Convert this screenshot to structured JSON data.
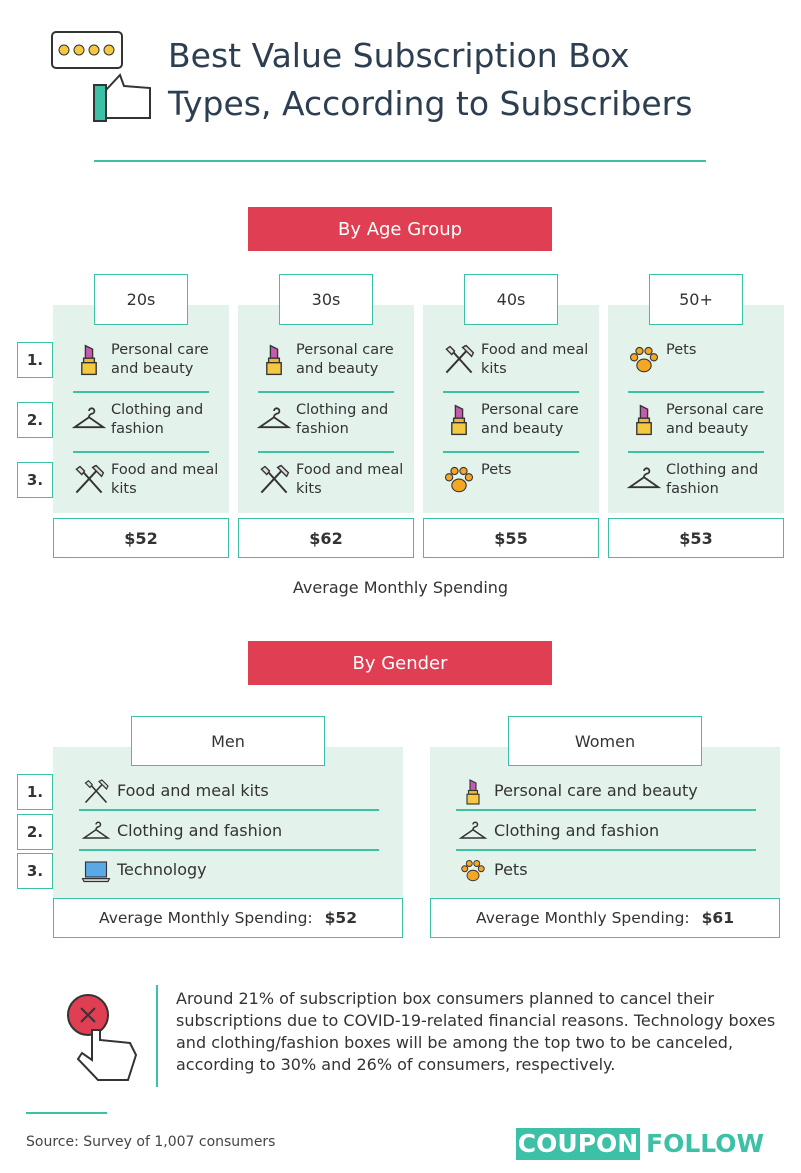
{
  "header": {
    "title_line1": "Best Value Subscription Box",
    "title_line2": "Types, According to Subscribers"
  },
  "age_section": {
    "title": "By Age Group",
    "rank_labels": [
      "1.",
      "2.",
      "3."
    ],
    "groups": [
      {
        "label": "20s",
        "items": [
          "Personal care and beauty",
          "Clothing and fashion",
          "Food and meal kits"
        ],
        "spending": "$52"
      },
      {
        "label": "30s",
        "items": [
          "Personal care and beauty",
          "Clothing and fashion",
          "Food and meal kits"
        ],
        "spending": "$62"
      },
      {
        "label": "40s",
        "items": [
          "Food and meal kits",
          "Personal care and beauty",
          "Pets"
        ],
        "spending": "$55"
      },
      {
        "label": "50+",
        "items": [
          "Pets",
          "Personal care and beauty",
          "Clothing and fashion"
        ],
        "spending": "$53"
      }
    ],
    "caption": "Average Monthly Spending"
  },
  "gender_section": {
    "title": "By Gender",
    "rank_labels": [
      "1.",
      "2.",
      "3."
    ],
    "groups": [
      {
        "label": "Men",
        "items": [
          "Food and meal kits",
          "Clothing and fashion",
          "Technology"
        ],
        "spending_label": "Average Monthly Spending:",
        "spending": "$52"
      },
      {
        "label": "Women",
        "items": [
          "Personal care and beauty",
          "Clothing and fashion",
          "Pets"
        ],
        "spending_label": "Average Monthly Spending:",
        "spending": "$61"
      }
    ]
  },
  "note": {
    "text": "Around 21% of subscription box consumers planned to cancel their subscriptions due to COVID-19-related financial reasons. Technology boxes and clothing/fashion boxes will be among the top two to be canceled, according to 30% and 26% of consumers, respectively."
  },
  "footer": {
    "source": "Source: Survey of 1,007 consumers",
    "brand_left": "COUPON",
    "brand_right": "FOLLOW"
  }
}
